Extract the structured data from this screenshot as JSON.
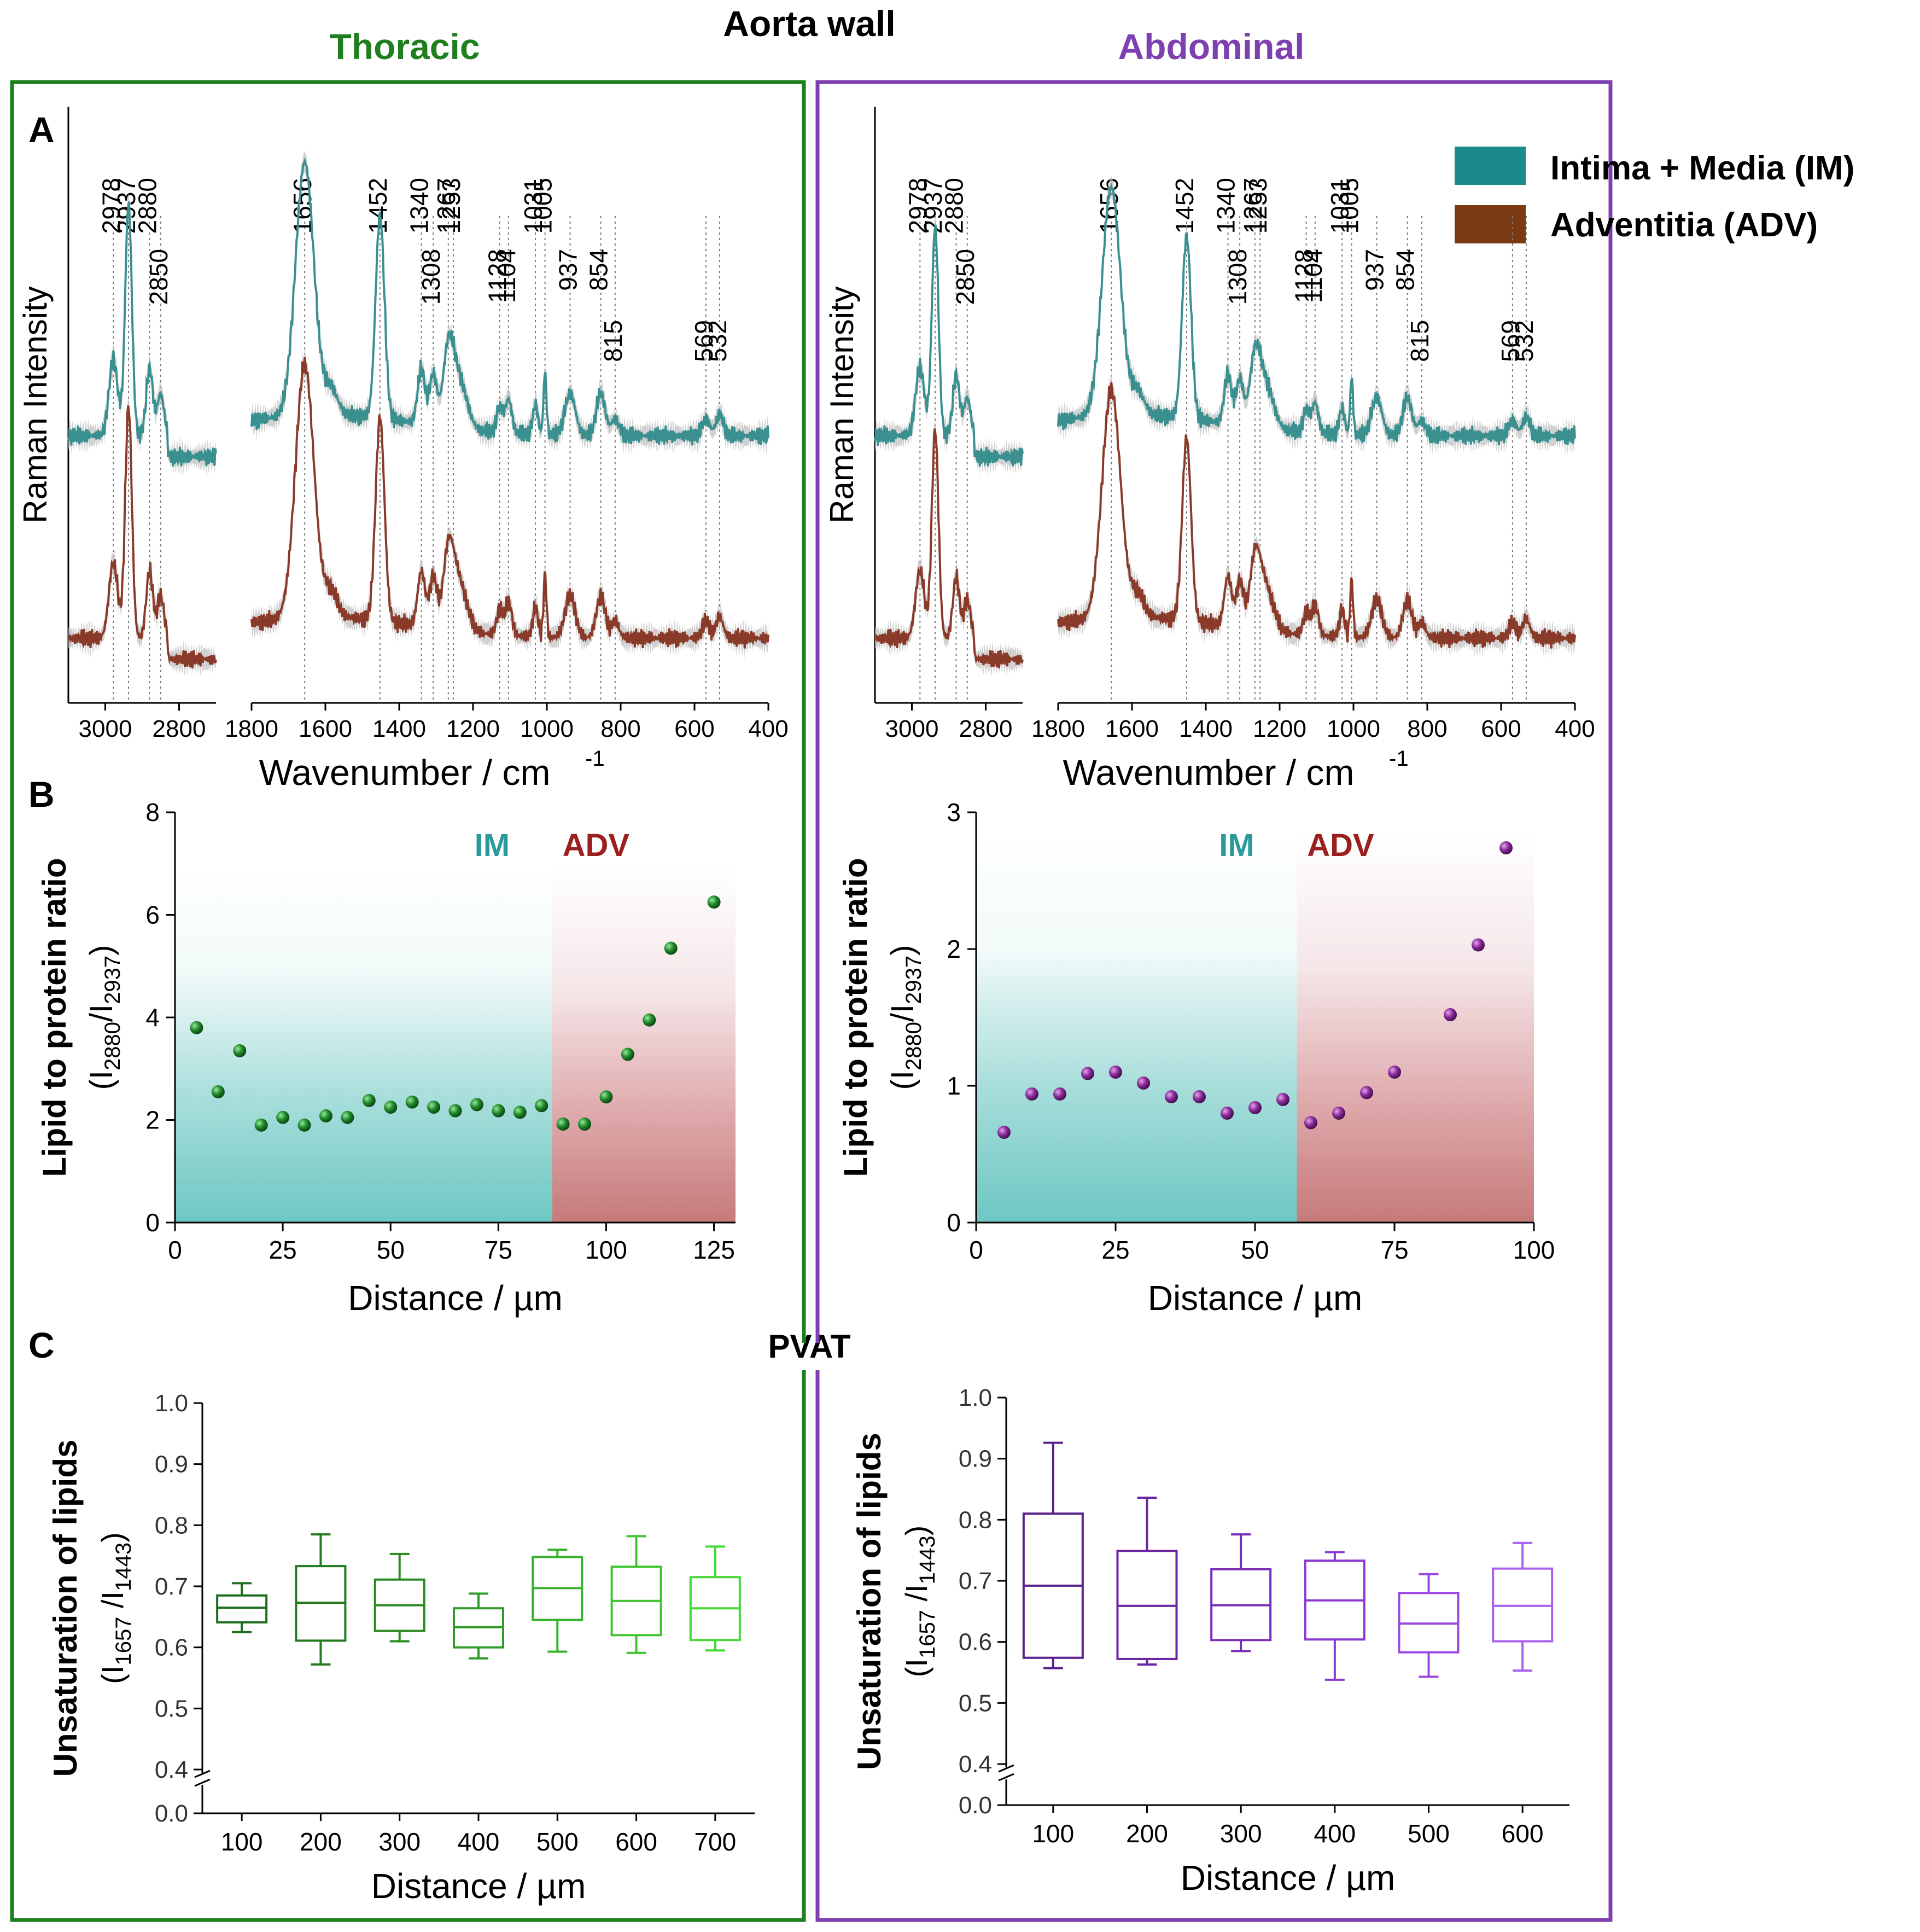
{
  "header": {
    "title": "Aorta wall",
    "left_label": "Thoracic",
    "right_label": "Abdominal",
    "pvat_label": "PVAT"
  },
  "colors": {
    "thoracic": "#1f7f1f",
    "abdominal": "#7e3fb0",
    "im": "#3a8f8f",
    "adv": "#8a3a28",
    "im_shade": "#7ecbc8",
    "adv_shade": "#c47c7c",
    "im_label": "#2a9a9a",
    "adv_label": "#9b1f1f",
    "green_points": "#1e8a2a",
    "purple_points": "#8a2a9a"
  },
  "panel_labels": {
    "a": "A",
    "b": "B",
    "c": "C"
  },
  "legend": {
    "im": "Intima + Media (IM)",
    "adv": "Adventitia (ADV)"
  },
  "chart_data": [
    {
      "id": "A-thoracic",
      "type": "line",
      "title": "Thoracic",
      "ylabel": "Raman Intensity",
      "xlabel": "Wavenumber / cm",
      "xlabel_sup": "-1",
      "x_ticks_high": [
        "3000",
        "2800"
      ],
      "x_ticks_low": [
        "1800",
        "1600",
        "1400",
        "1200",
        "1000",
        "800",
        "600",
        "400"
      ],
      "band_labels": [
        "2978",
        "2937",
        "2880",
        "2850",
        "1656",
        "1452",
        "1340",
        "1308",
        "1267",
        "1253",
        "1128",
        "1104",
        "1031",
        "1005",
        "937",
        "854",
        "815",
        "569",
        "532"
      ],
      "series": [
        {
          "name": "Intima + Media (IM)",
          "key": "im",
          "offset": 0.48,
          "amplitude": 1.0
        },
        {
          "name": "Adventitia (ADV)",
          "key": "adv",
          "offset": 0.0,
          "amplitude": 1.0
        }
      ]
    },
    {
      "id": "A-abdominal",
      "type": "line",
      "title": "Abdominal",
      "ylabel": "Raman Intensity",
      "xlabel": "Wavenumber / cm",
      "xlabel_sup": "-1",
      "x_ticks_high": [
        "3000",
        "2800"
      ],
      "x_ticks_low": [
        "1800",
        "1600",
        "1400",
        "1200",
        "1000",
        "800",
        "600",
        "400"
      ],
      "band_labels": [
        "2978",
        "2937",
        "2880",
        "2850",
        "1656",
        "1452",
        "1340",
        "1308",
        "1267",
        "1253",
        "1128",
        "1104",
        "1031",
        "1005",
        "937",
        "854",
        "815",
        "569",
        "532"
      ],
      "series": [
        {
          "name": "Intima + Media (IM)",
          "key": "im",
          "offset": 0.48,
          "amplitude": 0.9
        },
        {
          "name": "Adventitia (ADV)",
          "key": "adv",
          "offset": 0.0,
          "amplitude": 0.9
        }
      ]
    },
    {
      "id": "B-thoracic",
      "type": "scatter",
      "ylabel": "Lipid to protein ratio",
      "ylabel2": "(I",
      "ylabel2_sub1": "2880",
      "ylabel2_mid": "/I",
      "ylabel2_sub2": "2937",
      "ylabel2_end": ")",
      "xlabel": "Distance / µm",
      "xlim": [
        0,
        130
      ],
      "ylim": [
        0,
        8
      ],
      "x_ticks": [
        "0",
        "25",
        "50",
        "75",
        "100",
        "125"
      ],
      "y_ticks": [
        "0",
        "2",
        "4",
        "6",
        "8"
      ],
      "region_labels": [
        "IM",
        "ADV"
      ],
      "region_boundary": 87.5,
      "x": [
        5,
        10,
        15,
        20,
        25,
        30,
        35,
        40,
        45,
        50,
        55,
        60,
        65,
        70,
        75,
        80,
        85,
        90,
        95,
        100,
        105,
        110,
        115,
        125
      ],
      "y": [
        3.8,
        2.55,
        3.35,
        1.9,
        2.05,
        1.9,
        2.08,
        2.05,
        2.38,
        2.25,
        2.35,
        2.25,
        2.18,
        2.3,
        2.18,
        2.15,
        2.28,
        1.92,
        1.92,
        2.45,
        3.28,
        3.95,
        5.35,
        6.25
      ]
    },
    {
      "id": "B-abdominal",
      "type": "scatter",
      "ylabel": "Lipid to protein ratio",
      "ylabel2": "(I",
      "ylabel2_sub1": "2880",
      "ylabel2_mid": "/I",
      "ylabel2_sub2": "2937",
      "ylabel2_end": ")",
      "xlabel": "Distance / µm",
      "xlim": [
        0,
        100
      ],
      "ylim": [
        0,
        3
      ],
      "x_ticks": [
        "0",
        "25",
        "50",
        "75",
        "100"
      ],
      "y_ticks": [
        "0",
        "1",
        "2",
        "3"
      ],
      "region_labels": [
        "IM",
        "ADV"
      ],
      "region_boundary": 57.5,
      "x": [
        5,
        10,
        15,
        20,
        25,
        30,
        35,
        40,
        45,
        50,
        55,
        60,
        65,
        70,
        75,
        85,
        90,
        95
      ],
      "y": [
        0.66,
        0.94,
        0.94,
        1.09,
        1.1,
        1.02,
        0.92,
        0.92,
        0.8,
        0.84,
        0.9,
        0.73,
        0.8,
        0.95,
        1.1,
        1.52,
        2.03,
        2.74
      ]
    },
    {
      "id": "C-thoracic",
      "type": "box",
      "ylabel": "Unsaturation of lipids",
      "ylabel2": "(I",
      "ylabel2_sub1": "1657",
      "ylabel2_mid": " /I",
      "ylabel2_sub2": "1443",
      "ylabel2_end": ")",
      "xlabel": "Distance / µm",
      "y_break": true,
      "y_ticks_upper": [
        "0.4",
        "0.5",
        "0.6",
        "0.7",
        "0.8",
        "0.9",
        "1.0"
      ],
      "y_tick_lower": "0.0",
      "categories": [
        "100",
        "200",
        "300",
        "400",
        "500",
        "600",
        "700"
      ],
      "box_colors": [
        "#1f6e1f",
        "#237a1c",
        "#2a8a22",
        "#319a28",
        "#38b12d",
        "#3fc431",
        "#46d736"
      ],
      "boxes": [
        {
          "min": 0.625,
          "q1": 0.641,
          "median": 0.665,
          "q3": 0.685,
          "max": 0.705
        },
        {
          "min": 0.572,
          "q1": 0.611,
          "median": 0.673,
          "q3": 0.733,
          "max": 0.785
        },
        {
          "min": 0.61,
          "q1": 0.627,
          "median": 0.669,
          "q3": 0.711,
          "max": 0.753
        },
        {
          "min": 0.582,
          "q1": 0.6,
          "median": 0.633,
          "q3": 0.664,
          "max": 0.688
        },
        {
          "min": 0.593,
          "q1": 0.645,
          "median": 0.697,
          "q3": 0.748,
          "max": 0.76
        },
        {
          "min": 0.591,
          "q1": 0.62,
          "median": 0.676,
          "q3": 0.732,
          "max": 0.782
        },
        {
          "min": 0.595,
          "q1": 0.612,
          "median": 0.664,
          "q3": 0.715,
          "max": 0.765
        }
      ]
    },
    {
      "id": "C-abdominal",
      "type": "box",
      "ylabel": "Unsaturation of lipids",
      "ylabel2": "(I",
      "ylabel2_sub1": "1657",
      "ylabel2_mid": " /I",
      "ylabel2_sub2": "1443",
      "ylabel2_end": ")",
      "xlabel": "Distance / µm",
      "y_break": true,
      "y_ticks_upper": [
        "0.4",
        "0.5",
        "0.6",
        "0.7",
        "0.8",
        "0.9",
        "1.0"
      ],
      "y_tick_lower": "0.0",
      "categories": [
        "100",
        "200",
        "300",
        "400",
        "500",
        "600"
      ],
      "box_colors": [
        "#5a1f8a",
        "#6a26a0",
        "#7a2eb8",
        "#8a3ad0",
        "#9a48e0",
        "#aa60ee"
      ],
      "boxes": [
        {
          "min": 0.557,
          "q1": 0.574,
          "median": 0.692,
          "q3": 0.81,
          "max": 0.926
        },
        {
          "min": 0.563,
          "q1": 0.572,
          "median": 0.659,
          "q3": 0.749,
          "max": 0.836
        },
        {
          "min": 0.585,
          "q1": 0.603,
          "median": 0.66,
          "q3": 0.719,
          "max": 0.776
        },
        {
          "min": 0.538,
          "q1": 0.604,
          "median": 0.668,
          "q3": 0.733,
          "max": 0.747
        },
        {
          "min": 0.543,
          "q1": 0.583,
          "median": 0.63,
          "q3": 0.68,
          "max": 0.711
        },
        {
          "min": 0.553,
          "q1": 0.601,
          "median": 0.659,
          "q3": 0.72,
          "max": 0.762
        }
      ]
    }
  ]
}
